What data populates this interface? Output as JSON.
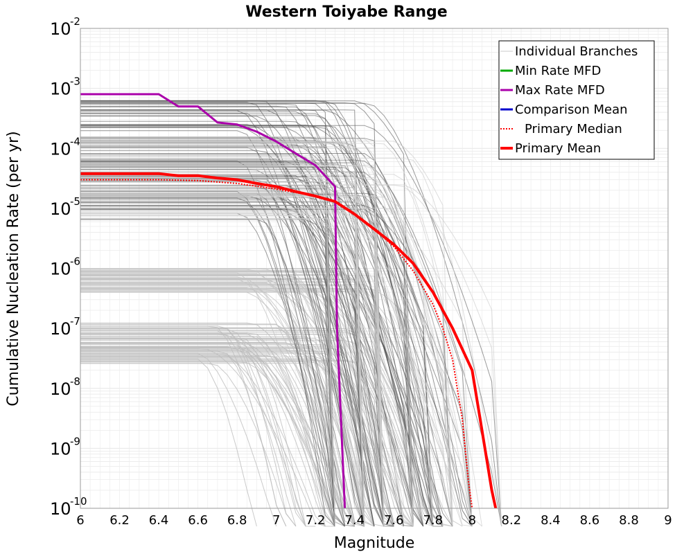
{
  "chart_data": {
    "type": "line",
    "title": "Western Toiyabe Range",
    "xlabel": "Magnitude",
    "ylabel": "Cumulative Nucleation Rate (per yr)",
    "xlim": [
      6,
      9
    ],
    "ylim": [
      1e-10,
      0.01
    ],
    "yscale": "log",
    "grid": true,
    "legend_position": "top-right",
    "x_ticks": [
      "6",
      "6.2",
      "6.4",
      "6.6",
      "6.8",
      "7",
      "7.2",
      "7.4",
      "7.6",
      "7.8",
      "8",
      "8.2",
      "8.4",
      "8.6",
      "8.8",
      "9"
    ],
    "y_ticks": [
      {
        "base": "10",
        "exp": "-2",
        "value": 0.01
      },
      {
        "base": "10",
        "exp": "-3",
        "value": 0.001
      },
      {
        "base": "10",
        "exp": "-4",
        "value": 0.0001
      },
      {
        "base": "10",
        "exp": "-5",
        "value": 1e-05
      },
      {
        "base": "10",
        "exp": "-6",
        "value": 1e-06
      },
      {
        "base": "10",
        "exp": "-7",
        "value": 1e-07
      },
      {
        "base": "10",
        "exp": "-8",
        "value": 1e-08
      },
      {
        "base": "10",
        "exp": "-9",
        "value": 1e-09
      },
      {
        "base": "10",
        "exp": "-10",
        "value": 1e-10
      }
    ],
    "legend": [
      {
        "label": "Individual Branches",
        "color": "#c8c8c8",
        "style": "thin"
      },
      {
        "label": "Min Rate MFD",
        "color": "#00aa00",
        "style": "solid"
      },
      {
        "label": "Max Rate MFD",
        "color": "#aa00aa",
        "style": "solid"
      },
      {
        "label": "Comparison Mean",
        "color": "#0000cc",
        "style": "solid"
      },
      {
        "label": "Primary Median",
        "color": "#ff0000",
        "style": "dotted"
      },
      {
        "label": "Primary Mean",
        "color": "#ff0000",
        "style": "thick"
      }
    ],
    "series": [
      {
        "name": "Max Rate MFD",
        "color": "#aa00aa",
        "x": [
          6.0,
          6.4,
          6.5,
          6.6,
          6.7,
          6.8,
          6.9,
          7.0,
          7.1,
          7.2,
          7.3,
          7.31,
          7.35
        ],
        "y": [
          0.0008,
          0.0008,
          0.0005,
          0.0005,
          0.00027,
          0.00025,
          0.00019,
          0.00013,
          8.2e-05,
          5.2e-05,
          2.3e-05,
          1e-07,
          1e-10
        ]
      },
      {
        "name": "Primary Mean",
        "color": "#ff0000",
        "x": [
          6.0,
          6.2,
          6.4,
          6.5,
          6.6,
          6.7,
          6.8,
          6.9,
          7.0,
          7.1,
          7.2,
          7.3,
          7.4,
          7.5,
          7.6,
          7.7,
          7.8,
          7.9,
          8.0,
          8.05,
          8.1,
          8.12
        ],
        "y": [
          3.8e-05,
          3.8e-05,
          3.8e-05,
          3.5e-05,
          3.5e-05,
          3.2e-05,
          3e-05,
          2.6e-05,
          2.3e-05,
          1.9e-05,
          1.6e-05,
          1.3e-05,
          8e-06,
          4.5e-06,
          2.5e-06,
          1.2e-06,
          4e-07,
          1e-07,
          2e-08,
          2e-09,
          2e-10,
          1e-10
        ]
      },
      {
        "name": "Primary Median",
        "color": "#ff0000",
        "x": [
          6.0,
          6.4,
          6.6,
          6.8,
          7.0,
          7.2,
          7.3,
          7.4,
          7.5,
          7.6,
          7.7,
          7.8,
          7.85,
          7.9,
          7.95,
          7.98,
          8.0
        ],
        "y": [
          3e-05,
          3e-05,
          2.9e-05,
          2.6e-05,
          2.1e-05,
          1.6e-05,
          1.3e-05,
          8e-06,
          4.5e-06,
          2.3e-06,
          9e-07,
          2.5e-07,
          1e-07,
          3e-08,
          3e-09,
          3e-10,
          1e-10
        ]
      }
    ]
  }
}
